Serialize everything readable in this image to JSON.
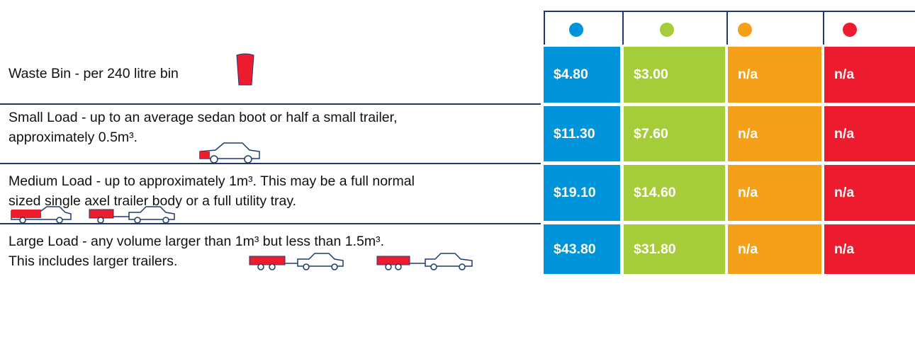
{
  "table": {
    "rows": [
      {
        "description": [
          "Waste Bin - per 240 litre bin"
        ],
        "prices": [
          "$4.80",
          "$3.00",
          "n/a",
          "n/a"
        ]
      },
      {
        "description": [
          "Small Load - up to an average sedan boot or half a small trailer,",
          "approximately 0.5m³."
        ],
        "prices": [
          "$11.30",
          "$7.60",
          "n/a",
          "n/a"
        ]
      },
      {
        "description": [
          "Medium Load - up to approximately 1m³. This may be a full normal",
          "sized single axel trailer body or a full utility tray."
        ],
        "prices": [
          "$19.10",
          "$14.60",
          "n/a",
          "n/a"
        ]
      },
      {
        "description": [
          "Large Load - any volume larger than 1m³ but less than 1.5m³.",
          "This includes larger trailers."
        ],
        "prices": [
          "$43.80",
          "$31.80",
          "n/a",
          "n/a"
        ]
      }
    ]
  }
}
